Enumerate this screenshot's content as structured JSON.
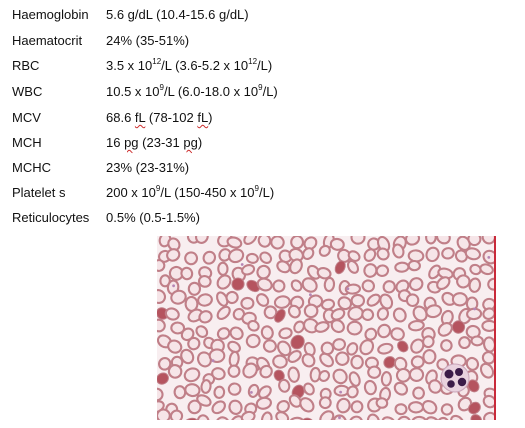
{
  "lab_results": [
    {
      "label": "Haemoglobin",
      "value_parts": [
        "5.6 g/dL (10.4-15.6 g/dL)"
      ]
    },
    {
      "label": "Haematocrit",
      "value_parts": [
        "24% (35-51%)"
      ]
    },
    {
      "label": "RBC",
      "value_parts": [
        "3.5 x 10",
        "12",
        "/L (3.6-5.2 x 10",
        "12",
        "/L)"
      ]
    },
    {
      "label": "WBC",
      "value_parts": [
        "10.5 x 10",
        "9",
        "/L (6.0-18.0 x 10",
        "9",
        "/L)"
      ]
    },
    {
      "label": "MCV",
      "value_parts": [
        "68.6 ",
        "fL",
        " (78-102 ",
        "fL",
        ")"
      ]
    },
    {
      "label": "MCH",
      "value_parts": [
        "16 ",
        "pg",
        " (23-31 ",
        "pg",
        ")"
      ]
    },
    {
      "label": "MCHC",
      "value_parts": [
        "23% (23-31%)"
      ]
    },
    {
      "label": "Platelet s",
      "value_parts": [
        "200 x 10",
        "9",
        "/L (150-450 x 10",
        "9",
        "/L)"
      ]
    },
    {
      "label": "Reticulocytes",
      "value_parts": [
        "0.5% (0.5-1.5%)"
      ]
    }
  ],
  "micrograph": {
    "colors": {
      "background": "#f8eef0",
      "rbc_rim": "#c07f88",
      "rbc_pale_center": "#f6e5e8",
      "dense_rbc": "#b5545f",
      "nucleus": "#3c1c48",
      "platelet": "#b585b5",
      "edge_line": "#c92a3a"
    }
  }
}
